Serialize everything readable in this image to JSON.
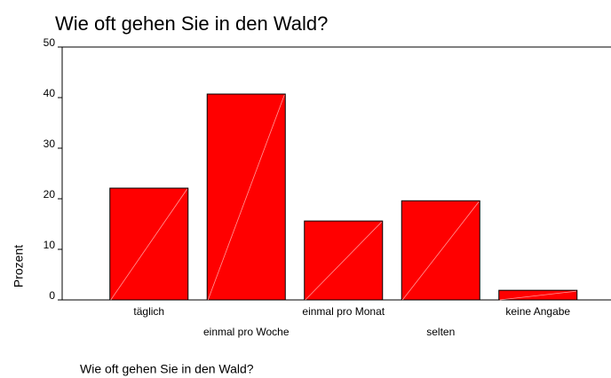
{
  "chart_data": {
    "type": "bar",
    "title": "Wie oft gehen Sie in den Wald?",
    "categories": [
      "täglich",
      "einmal pro Woche",
      "einmal pro Monat",
      "selten",
      "keine Angabe"
    ],
    "values": [
      22.1,
      40.7,
      15.6,
      19.6,
      1.9
    ],
    "color": "#ff0000",
    "ylim": [
      0,
      50
    ],
    "yticks": [
      0,
      10,
      20,
      30,
      40,
      50
    ],
    "y_label": "Prozent",
    "x_label": "Wie oft gehen Sie in den Wald?"
  }
}
